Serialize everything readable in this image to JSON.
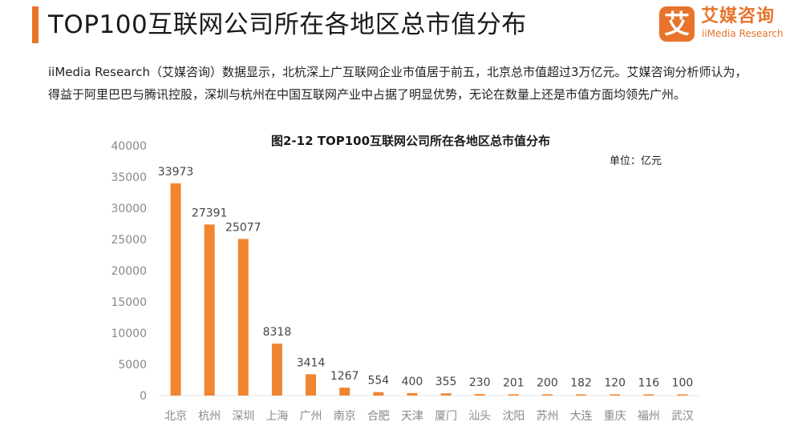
{
  "header": {
    "title": "TOP100互联网公司所在各地区总市值分布"
  },
  "logo": {
    "mark": "艾",
    "name_cn": "艾媒咨询",
    "name_en": "iiMedia Research"
  },
  "description": "iiMedia Research（艾媒咨询）数据显示，北杭深上广互联网企业市值居于前五，北京总市值超过3万亿元。艾媒咨询分析师认为，得益于阿里巴巴与腾讯控股，深圳与杭州在中国互联网产业中占据了明显优势，无论在数量上还是市值方面均领先广州。",
  "colors": {
    "accent": "#e8732a",
    "bar": "#f08532",
    "axis_text": "#888888",
    "label_text": "#444444"
  },
  "chart_data": {
    "type": "bar",
    "title": "图2-12 TOP100互联网公司所在各地区总市值分布",
    "unit": "单位：亿元",
    "categories": [
      "北京",
      "杭州",
      "深圳",
      "上海",
      "广州",
      "南京",
      "合肥",
      "天津",
      "厦门",
      "汕头",
      "沈阳",
      "苏州",
      "大连",
      "重庆",
      "福州",
      "武汉"
    ],
    "values": [
      33973,
      27391,
      25077,
      8318,
      3414,
      1267,
      554,
      400,
      355,
      230,
      201,
      200,
      182,
      120,
      116,
      100
    ],
    "ylim": [
      0,
      40000
    ],
    "yticks": [
      0,
      5000,
      10000,
      15000,
      20000,
      25000,
      30000,
      35000,
      40000
    ],
    "grid": false,
    "legend": "none"
  }
}
